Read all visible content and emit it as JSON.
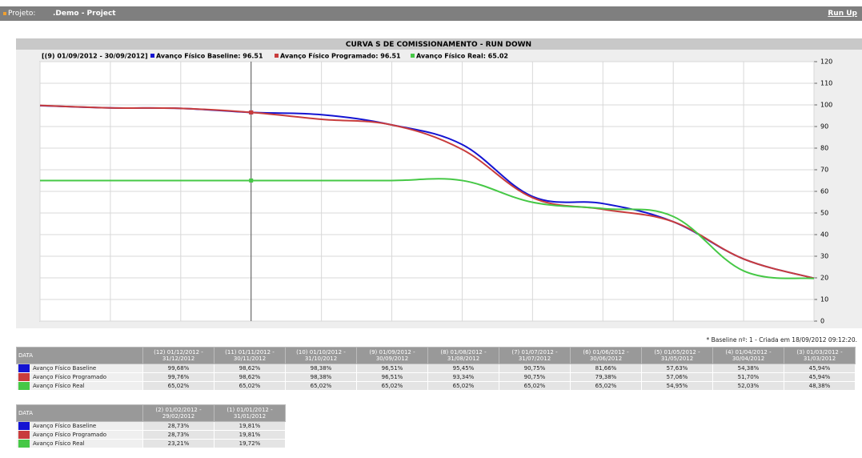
{
  "header": {
    "label": "Projeto:",
    "project": ".Demo - Project",
    "link": "Run Up"
  },
  "chart_data": {
    "type": "line",
    "title": "CURVA S DE COMISSIONAMENTO - RUN DOWN",
    "period": "[(9) 01/09/2012 - 30/09/2012]",
    "categories": [
      null,
      null,
      null,
      null,
      null,
      null,
      null,
      null,
      null,
      null,
      null,
      null
    ],
    "series": [
      {
        "name": "Avanço Físico Baseline: 96.51",
        "color": "#1414d2",
        "values": [
          99.68,
          98.62,
          98.38,
          96.51,
          95.45,
          90.75,
          81.66,
          57.63,
          54.38,
          45.94,
          28.73,
          19.81
        ]
      },
      {
        "name": "Avanço Físico Programado: 96.51",
        "color": "#c83c3c",
        "values": [
          99.76,
          98.62,
          98.38,
          96.51,
          93.34,
          90.75,
          79.38,
          57.06,
          51.7,
          45.94,
          28.73,
          19.81
        ]
      },
      {
        "name": "Avanço Físico Real: 65.02",
        "color": "#46c846",
        "values": [
          65.02,
          65.02,
          65.02,
          65.02,
          65.02,
          65.02,
          65.02,
          54.95,
          52.03,
          48.38,
          23.21,
          19.72
        ]
      }
    ],
    "ylim": [
      0,
      120
    ],
    "yticks": [
      0,
      10,
      20,
      30,
      40,
      50,
      60,
      70,
      80,
      90,
      100,
      110,
      120
    ],
    "grid": true,
    "legend": "top"
  },
  "footnote": "* Baseline nº: 1 - Criada em 18/09/2012 09:12:20.",
  "tables": [
    {
      "header": [
        "DATA",
        "(12) 01/12/2012 - 31/12/2012",
        "(11) 01/11/2012 - 30/11/2012",
        "(10) 01/10/2012 - 31/10/2012",
        "(9) 01/09/2012 - 30/09/2012",
        "(8) 01/08/2012 - 31/08/2012",
        "(7) 01/07/2012 - 31/07/2012",
        "(6) 01/06/2012 - 30/06/2012",
        "(5) 01/05/2012 - 31/05/2012",
        "(4) 01/04/2012 - 30/04/2012",
        "(3) 01/03/2012 - 31/03/2012"
      ],
      "rows": [
        [
          "Avanço Físico Baseline",
          "99,68%",
          "98,62%",
          "98,38%",
          "96,51%",
          "95,45%",
          "90,75%",
          "81,66%",
          "57,63%",
          "54,38%",
          "45,94%"
        ],
        [
          "Avanço Físico Programado",
          "99,76%",
          "98,62%",
          "98,38%",
          "96,51%",
          "93,34%",
          "90,75%",
          "79,38%",
          "57,06%",
          "51,70%",
          "45,94%"
        ],
        [
          "Avanço Físico Real",
          "65,02%",
          "65,02%",
          "65,02%",
          "65,02%",
          "65,02%",
          "65,02%",
          "65,02%",
          "54,95%",
          "52,03%",
          "48,38%"
        ]
      ]
    },
    {
      "header": [
        "DATA",
        "(2) 01/02/2012 - 29/02/2012",
        "(1) 01/01/2012 - 31/01/2012"
      ],
      "rows": [
        [
          "Avanço Físico Baseline",
          "28,73%",
          "19,81%"
        ],
        [
          "Avanço Físico Programado",
          "28,73%",
          "19,81%"
        ],
        [
          "Avanço Físico Real",
          "23,21%",
          "19,72%"
        ]
      ]
    }
  ]
}
